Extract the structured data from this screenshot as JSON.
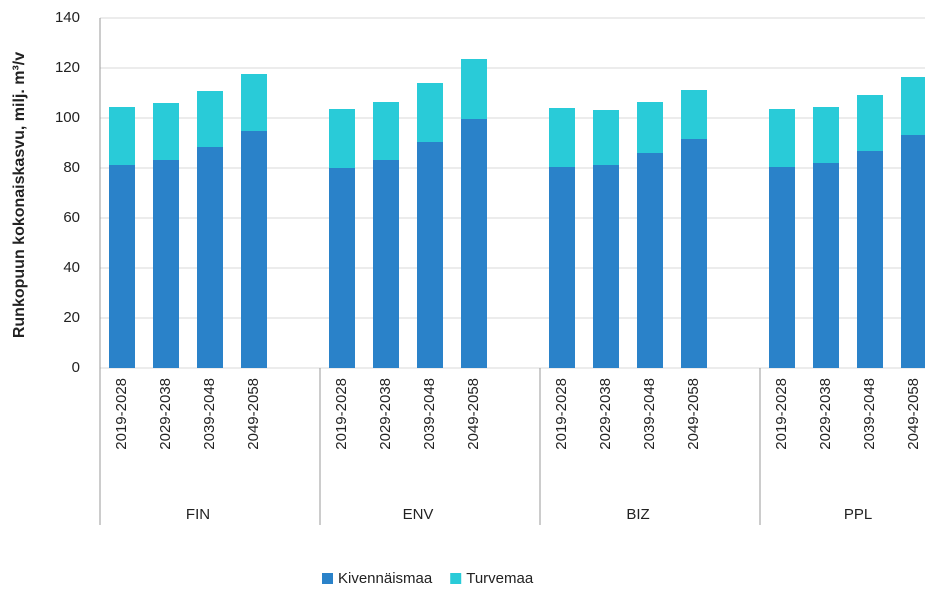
{
  "chart_data": {
    "type": "stacked_bar",
    "y_label": "Runkopuun kokonaiskasvu, milj. m³/v",
    "groups": [
      "FIN",
      "ENV",
      "BIZ",
      "PPL"
    ],
    "categories": [
      "2019-2028",
      "2029-2038",
      "2039-2048",
      "2049-2058",
      "2019-2028",
      "2029-2038",
      "2039-2048",
      "2049-2058",
      "2019-2028",
      "2029-2038",
      "2039-2048",
      "2049-2058",
      "2019-2028",
      "2029-2038",
      "2039-2048",
      "2049-2058"
    ],
    "series": [
      {
        "name": "Kivennäismaa",
        "color": "#2a82c9",
        "values": [
          81.2,
          83.2,
          88.4,
          94.8,
          80,
          83.2,
          90.4,
          99.6,
          80.4,
          81.2,
          86,
          91.6,
          80.4,
          82,
          86.8,
          93.2
        ]
      },
      {
        "name": "Turvemaa",
        "color": "#29cbd8",
        "values": [
          23.2,
          22.8,
          22.4,
          22.8,
          23.6,
          23.2,
          23.6,
          24,
          23.6,
          22,
          20.4,
          19.6,
          23.2,
          22.4,
          22.4,
          23.2
        ]
      }
    ],
    "ylim": [
      0,
      140
    ],
    "yticks": [
      0,
      20,
      40,
      60,
      80,
      100,
      120,
      140
    ],
    "grid": true,
    "legend": "bottom"
  }
}
